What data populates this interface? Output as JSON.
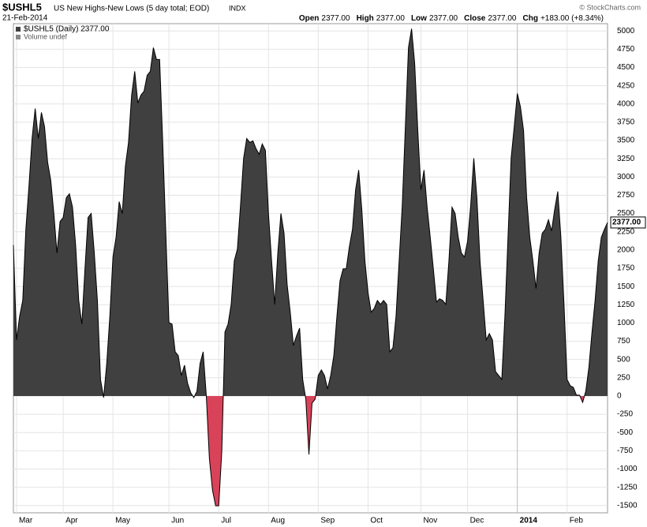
{
  "chart_data": {
    "type": "area",
    "symbol": "$USHL5",
    "title": "US New Highs-New Lows (5 day total; EOD)",
    "exchange": "INDX",
    "date": "21-Feb-2014",
    "quote": [
      {
        "label": "Open",
        "value": "2377.00"
      },
      {
        "label": "High",
        "value": "2377.00"
      },
      {
        "label": "Low",
        "value": "2377.00"
      },
      {
        "label": "Close",
        "value": "2377.00"
      },
      {
        "label": "Chg",
        "value": "+183.00 (+8.34%)"
      }
    ],
    "credit": "© StockCharts.com",
    "legend": [
      "$USHL5 (Daily) 2377.00",
      "Volume undef"
    ],
    "last_label": "2377.00",
    "series": [
      {
        "name": "$USHL5",
        "color": "#404040",
        "negative_color": "#d9435a",
        "values": [
          2067,
          768,
          1093,
          1309,
          2283,
          2878,
          3527,
          3938,
          3527,
          3884,
          3690,
          3203,
          2954,
          2500,
          1959,
          2391,
          2445,
          2716,
          2770,
          2586,
          2067,
          1309,
          984,
          1742,
          2445,
          2500,
          1959,
          1309,
          227,
          -22,
          444,
          1093,
          1904,
          2175,
          2662,
          2500,
          3149,
          3473,
          4122,
          4447,
          4014,
          4122,
          4176,
          4393,
          4447,
          4772,
          4609,
          4609,
          3473,
          2229,
          1006,
          984,
          606,
          552,
          281,
          422,
          173,
          43,
          -22,
          65,
          444,
          606,
          11,
          -855,
          -1288,
          -1504,
          -1504,
          -747,
          876,
          984,
          1255,
          1850,
          2012,
          2608,
          3257,
          3527,
          3473,
          3495,
          3387,
          3311,
          3452,
          3365,
          2500,
          1850,
          1255,
          1959,
          2500,
          2229,
          1526,
          1147,
          692,
          822,
          930,
          227,
          -43,
          -801,
          -97,
          -43,
          281,
          357,
          281,
          97,
          281,
          552,
          1093,
          1580,
          1742,
          1742,
          2045,
          2283,
          2824,
          3095,
          2554,
          1850,
          1418,
          1147,
          1201,
          1309,
          1255,
          1309,
          1255,
          606,
          660,
          1093,
          1850,
          2608,
          3690,
          4772,
          5031,
          4555,
          3636,
          2824,
          3095,
          2586,
          2175,
          1742,
          1288,
          1331,
          1309,
          1255,
          1850,
          2586,
          2500,
          2175,
          1959,
          1904,
          2121,
          2608,
          3257,
          2716,
          1850,
          1309,
          768,
          855,
          768,
          335,
          281,
          227,
          1093,
          2175,
          3257,
          3690,
          4144,
          3960,
          3636,
          2716,
          2175,
          1850,
          1472,
          1959,
          2229,
          2283,
          2413,
          2261,
          2554,
          2802,
          2175,
          1255,
          227,
          141,
          119,
          11,
          11,
          -87,
          65,
          390,
          876,
          1309,
          1850,
          2175,
          2283,
          2377
        ]
      }
    ],
    "xlim": [
      0,
      191
    ],
    "xticks": [
      {
        "value": 1,
        "label": "Mar"
      },
      {
        "value": 16,
        "label": "Apr"
      },
      {
        "value": 32,
        "label": "May"
      },
      {
        "value": 50,
        "label": "Jun"
      },
      {
        "value": 66,
        "label": "Jul"
      },
      {
        "value": 82,
        "label": "Aug"
      },
      {
        "value": 98,
        "label": "Sep"
      },
      {
        "value": 114,
        "label": "Oct"
      },
      {
        "value": 131,
        "label": "Nov"
      },
      {
        "value": 146,
        "label": "Dec"
      },
      {
        "value": 162,
        "label": "2014"
      },
      {
        "value": 178,
        "label": "Feb"
      }
    ],
    "ylim": [
      -1600,
      5100
    ],
    "yticks": [
      -1500,
      -1250,
      -1000,
      -750,
      -500,
      -250,
      0,
      250,
      500,
      750,
      1000,
      1250,
      1500,
      1750,
      2000,
      2250,
      2500,
      2750,
      3000,
      3250,
      3500,
      3750,
      4000,
      4250,
      4500,
      4750,
      5000
    ],
    "grid": true
  }
}
